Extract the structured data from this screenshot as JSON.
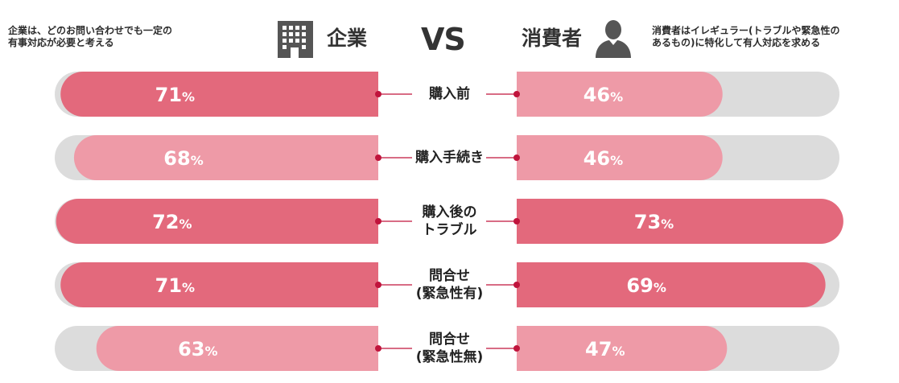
{
  "header": {
    "left_note": "企業は、どのお問い合わせでも一定の\n有事対応が必要と考える",
    "company_label": "企業",
    "vs_label": "VS",
    "consumer_label": "消費者",
    "right_note": "消費者はイレギュラー(トラブルや緊急性の\nあるもの)に特化して有人対応を求める",
    "icons": {
      "company": "building-icon",
      "consumer": "person-icon"
    }
  },
  "colors": {
    "track": "#dcdcdc",
    "dark_bar": "#e3697c",
    "light_bar": "#ee9aa7",
    "connector": "#c0143c"
  },
  "chart_data": {
    "type": "bar",
    "orientation": "diverging-horizontal",
    "unit": "%",
    "categories": [
      "購入前",
      "購入手続き",
      "購入後の\nトラブル",
      "問合せ\n(緊急性有)",
      "問合せ\n(緊急性無)"
    ],
    "series": [
      {
        "name": "企業",
        "side": "left",
        "values": [
          71,
          68,
          72,
          71,
          63
        ],
        "labels": [
          "71%",
          "68%",
          "72%",
          "71%",
          "63%"
        ],
        "shade": [
          "dark",
          "light",
          "dark",
          "dark",
          "light"
        ]
      },
      {
        "name": "消費者",
        "side": "right",
        "values": [
          46,
          46,
          73,
          69,
          47
        ],
        "labels": [
          "46%",
          "46%",
          "73%",
          "69%",
          "47%"
        ],
        "shade": [
          "light",
          "light",
          "dark",
          "dark",
          "light"
        ]
      }
    ],
    "xlim": [
      0,
      100
    ],
    "legend": "none",
    "grid": false
  }
}
